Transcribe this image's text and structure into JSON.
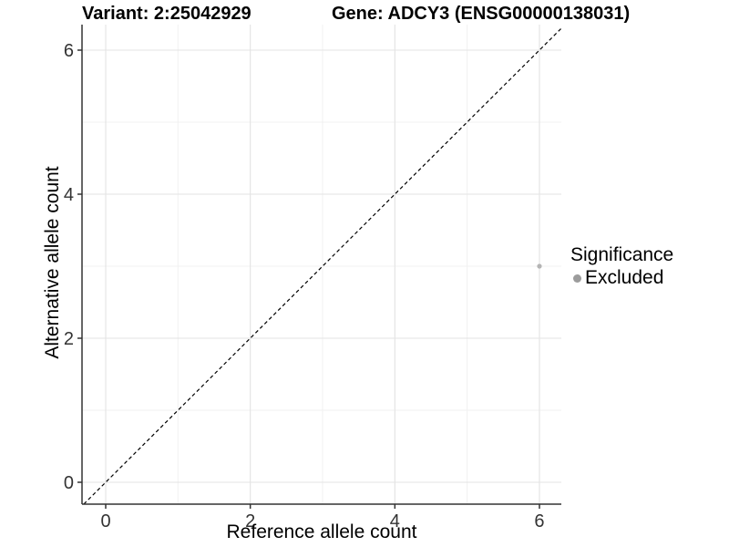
{
  "header": {
    "variant_title": "Variant: 2:25042929",
    "gene_title": "Gene: ADCY3 (ENSG00000138031)"
  },
  "chart_data": {
    "type": "scatter",
    "title": "",
    "xlabel": "Reference allele count",
    "ylabel": "Alternative allele count",
    "xticks": [
      0,
      2,
      4,
      6
    ],
    "yticks": [
      0,
      2,
      4,
      6
    ],
    "minor_xticks": [
      1,
      3,
      5
    ],
    "minor_yticks": [
      1,
      3,
      5
    ],
    "xlim": [
      -0.33,
      6.3
    ],
    "ylim": [
      -0.3,
      6.35
    ],
    "grid": "on",
    "identity_line": {
      "type": "dashed",
      "equation": "y = x",
      "color": "#000000"
    },
    "series": [
      {
        "name": "Excluded",
        "color": "#b4b4b4",
        "points": [
          {
            "x": 6,
            "y": 3
          }
        ],
        "point_radius": 2.6
      }
    ],
    "legend": {
      "position": "right",
      "title": "Significance",
      "items": [
        {
          "label": "Excluded",
          "color": "#9c9c9c"
        }
      ]
    }
  },
  "colors": {
    "background": "#ffffff",
    "major_grid": "#e3e3e3",
    "minor_grid": "#f1f1f1",
    "axis_line": "#333333",
    "tick_text": "#333333",
    "title_text": "#000000"
  }
}
